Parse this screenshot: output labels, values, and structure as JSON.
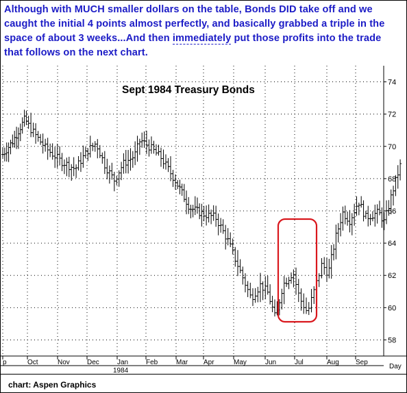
{
  "annotation": {
    "part1": "Although with MUCH smaller dollars on the table, Bonds DID take off and we caught the initial 4 points almost perfectly, and basically grabbed a triple in the space of about 3 weeks...And then ",
    "underlined": "immediately",
    "part2": " put those profits into the trade that follows on the next chart."
  },
  "credit": "chart: Aspen Graphics",
  "colors": {
    "annotation": "#1c1cc6",
    "highlight": "#d9161c",
    "bars": "#000000",
    "grid": "#000000"
  },
  "chart_data": {
    "type": "bar",
    "style": "ohlc",
    "title": "Sept 1984 Treasury Bonds",
    "xlabel": "Day",
    "ylabel": "",
    "x_tick_labels": [
      "p",
      "Oct",
      "Nov",
      "Dec",
      "Jan",
      "Feb",
      "Mar",
      "Apr",
      "May",
      "Jun",
      "Jul",
      "Aug",
      "Sep"
    ],
    "year_label": "1984",
    "ylim": [
      57,
      75
    ],
    "y_ticks": [
      58,
      60,
      62,
      64,
      66,
      68,
      70,
      72,
      74
    ],
    "grid": true,
    "y_axis_side": "right",
    "highlight": {
      "shape": "rounded-rectangle",
      "from_month": "Jun",
      "to_month": "Jul",
      "price_low": 59.1,
      "price_high": 65.4
    },
    "series_keypoints": [
      {
        "t": 0.0,
        "close": 69.5
      },
      {
        "t": 0.4,
        "close": 70.3
      },
      {
        "t": 0.9,
        "close": 71.7
      },
      {
        "t": 1.1,
        "close": 71.1
      },
      {
        "t": 1.6,
        "close": 69.9
      },
      {
        "t": 2.1,
        "close": 69.1
      },
      {
        "t": 2.6,
        "close": 68.6
      },
      {
        "t": 3.0,
        "close": 69.7
      },
      {
        "t": 3.3,
        "close": 70.2
      },
      {
        "t": 3.6,
        "close": 68.8
      },
      {
        "t": 3.9,
        "close": 67.9
      },
      {
        "t": 4.2,
        "close": 68.9
      },
      {
        "t": 4.6,
        "close": 69.4
      },
      {
        "t": 4.8,
        "close": 70.4
      },
      {
        "t": 5.1,
        "close": 70.0
      },
      {
        "t": 5.5,
        "close": 69.3
      },
      {
        "t": 6.0,
        "close": 67.8
      },
      {
        "t": 6.5,
        "close": 66.2
      },
      {
        "t": 7.0,
        "close": 65.8
      },
      {
        "t": 7.4,
        "close": 65.6
      },
      {
        "t": 7.8,
        "close": 64.2
      },
      {
        "t": 8.2,
        "close": 62.3
      },
      {
        "t": 8.55,
        "close": 60.6
      },
      {
        "t": 8.85,
        "close": 61.4
      },
      {
        "t": 9.1,
        "close": 60.9
      },
      {
        "t": 9.35,
        "close": 59.3
      },
      {
        "t": 9.6,
        "close": 61.4
      },
      {
        "t": 9.95,
        "close": 62.2
      },
      {
        "t": 10.15,
        "close": 60.6
      },
      {
        "t": 10.4,
        "close": 59.7
      },
      {
        "t": 10.6,
        "close": 61.0
      },
      {
        "t": 10.85,
        "close": 62.7
      },
      {
        "t": 11.05,
        "close": 62.1
      },
      {
        "t": 11.3,
        "close": 64.3
      },
      {
        "t": 11.55,
        "close": 65.9
      },
      {
        "t": 11.8,
        "close": 65.4
      },
      {
        "t": 12.1,
        "close": 66.6
      },
      {
        "t": 12.35,
        "close": 65.6
      },
      {
        "t": 12.8,
        "close": 65.9
      },
      {
        "t": 13.0,
        "close": 65.3
      },
      {
        "t": 13.3,
        "close": 67.3
      },
      {
        "t": 13.55,
        "close": 68.8
      }
    ]
  }
}
